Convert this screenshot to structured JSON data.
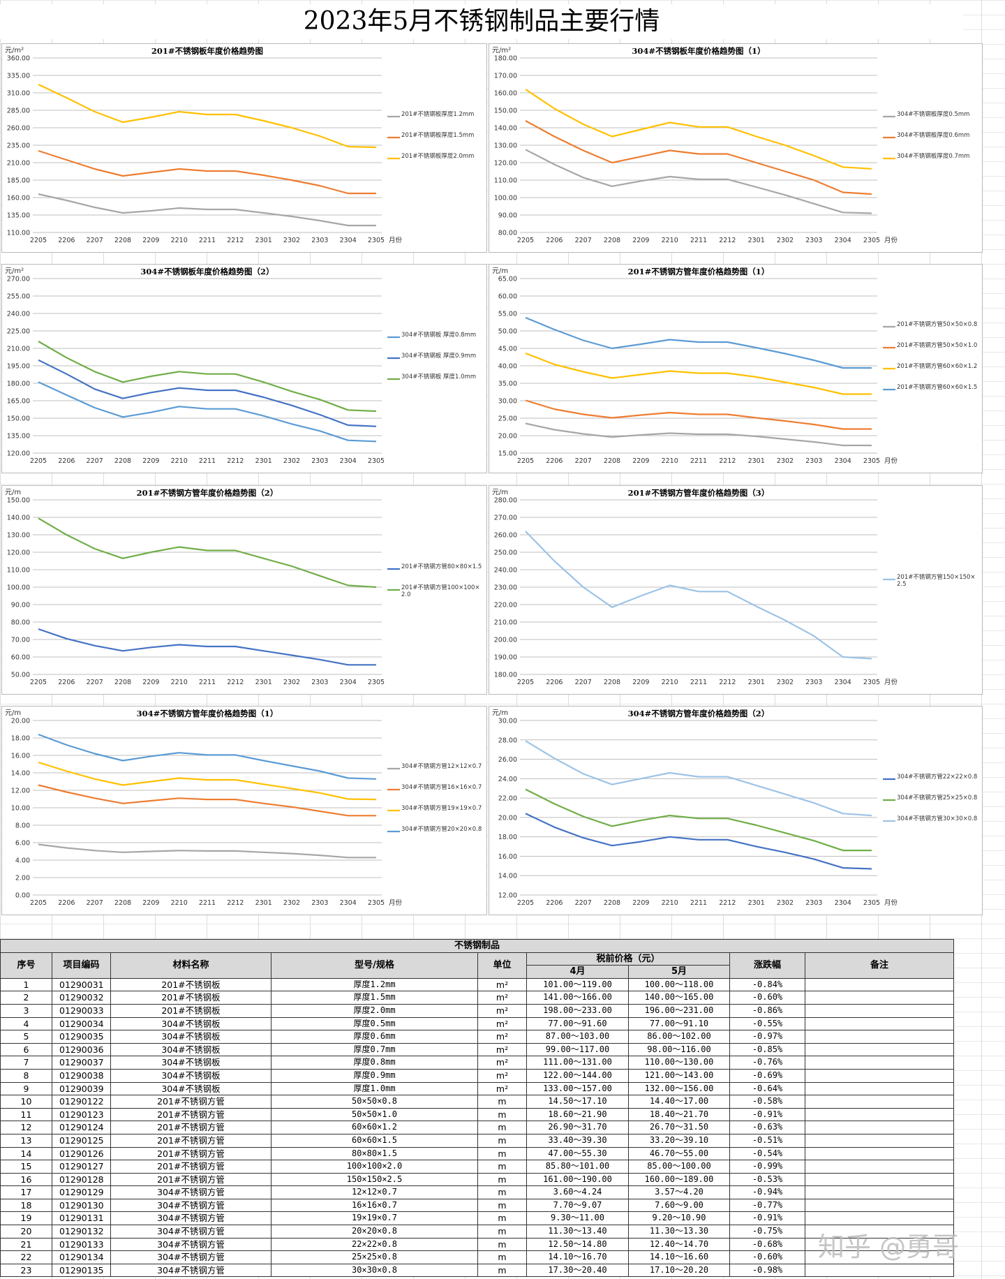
{
  "title": "2023年5月不锈钢制品主要行情",
  "watermark": "知乎 @勇哥",
  "months": [
    "2205",
    "2206",
    "2207",
    "2208",
    "2209",
    "2210",
    "2211",
    "2212",
    "2301",
    "2302",
    "2303",
    "2304",
    "2305"
  ],
  "chart_data": [
    {
      "type": "line",
      "title": "201#不锈钢板年度价格趋势图",
      "unit": "元/m²",
      "xlabel": "月份",
      "ylim": [
        110,
        360
      ],
      "ystep": 25,
      "ydec": 2,
      "legend": "right",
      "series": [
        {
          "name": "201#不锈钢板厚度1.2mm",
          "color": "#a6a6a6",
          "values": [
            165,
            156,
            146,
            138,
            141,
            145,
            143,
            143,
            138,
            133,
            127,
            120,
            120
          ]
        },
        {
          "name": "201#不锈钢板厚度1.5mm",
          "color": "#ed7d31",
          "values": [
            227,
            214,
            201,
            191,
            196,
            201,
            198,
            198,
            192,
            185,
            177,
            166,
            166
          ]
        },
        {
          "name": "201#不锈钢板厚度2.0mm",
          "color": "#ffc000",
          "values": [
            322,
            303,
            283,
            268,
            275,
            283,
            279,
            279,
            270,
            260,
            248,
            233,
            232
          ]
        }
      ]
    },
    {
      "type": "line",
      "title": "304#不锈钢板年度价格趋势图（1）",
      "unit": "元/m²",
      "xlabel": "月份",
      "ylim": [
        80,
        180
      ],
      "ystep": 10,
      "ydec": 2,
      "legend": "right",
      "series": [
        {
          "name": "304#不锈钢板厚度0.5mm",
          "color": "#a6a6a6",
          "values": [
            127.5,
            119,
            111.5,
            106.5,
            109.5,
            112,
            110.5,
            110.5,
            106,
            101.5,
            96.5,
            91.5,
            91
          ]
        },
        {
          "name": "304#不锈钢板厚度0.6mm",
          "color": "#ed7d31",
          "values": [
            144,
            135,
            127,
            120,
            123.5,
            127,
            125,
            125,
            120,
            115,
            110,
            103,
            102
          ]
        },
        {
          "name": "304#不锈钢板厚度0.7mm",
          "color": "#ffc000",
          "values": [
            162,
            151,
            142,
            135,
            139,
            143,
            140.5,
            140.5,
            135,
            130,
            124,
            117.5,
            116.5
          ]
        }
      ]
    },
    {
      "type": "line",
      "title": "304#不锈钢板年度价格趋势图（2）",
      "unit": "元/m²",
      "xlabel": "",
      "ylim": [
        120,
        270
      ],
      "ystep": 15,
      "ydec": 2,
      "legend": "right",
      "series": [
        {
          "name": "304#不锈钢板 厚度0.8mm",
          "color": "#5b9bd5",
          "values": [
            181,
            170,
            159,
            151,
            155,
            160,
            158,
            158,
            152,
            145,
            139,
            131,
            130
          ]
        },
        {
          "name": "304#不锈钢板 厚度0.9mm",
          "color": "#4472c4",
          "values": [
            200,
            188,
            175,
            167,
            172,
            176,
            174,
            174,
            168,
            161,
            153,
            144,
            143
          ]
        },
        {
          "name": "304#不锈钢板 厚度1.0mm",
          "color": "#70ad47",
          "values": [
            216,
            202,
            190,
            181,
            186,
            190,
            188,
            188,
            181,
            173,
            166,
            157,
            156
          ]
        }
      ]
    },
    {
      "type": "line",
      "title": "201#不锈钢方管年度价格趋势图（1）",
      "unit": "元/m",
      "xlabel": "月份",
      "ylim": [
        15,
        65
      ],
      "ystep": 5,
      "ydec": 2,
      "legend": "right",
      "series": [
        {
          "name": "201#不锈钢方管50×50×0.8",
          "color": "#a6a6a6",
          "values": [
            23.5,
            21.7,
            20.5,
            19.6,
            20.2,
            20.7,
            20.4,
            20.4,
            19.8,
            19,
            18.2,
            17.2,
            17.2
          ]
        },
        {
          "name": "201#不锈钢方管50×50×1.0",
          "color": "#ed7d31",
          "values": [
            30.1,
            27.6,
            26.1,
            25.1,
            25.9,
            26.6,
            26.1,
            26.1,
            25.1,
            24.2,
            23.2,
            21.9,
            21.9
          ]
        },
        {
          "name": "201#不锈钢方管60×60×1.2",
          "color": "#ffc000",
          "values": [
            43.6,
            40.4,
            38.3,
            36.5,
            37.5,
            38.5,
            37.9,
            37.9,
            36.8,
            35.3,
            33.8,
            31.9,
            31.9
          ]
        },
        {
          "name": "201#不锈钢方管60×60×1.5",
          "color": "#5b9bd5",
          "values": [
            53.8,
            50.4,
            47.3,
            45,
            46.2,
            47.5,
            46.8,
            46.8,
            45.2,
            43.5,
            41.6,
            39.4,
            39.4
          ]
        }
      ]
    },
    {
      "type": "line",
      "title": "201#不锈钢方管年度价格趋势图（2）",
      "unit": "元/m",
      "xlabel": "",
      "ylim": [
        50,
        150
      ],
      "ystep": 10,
      "ydec": 2,
      "legend": "right",
      "series": [
        {
          "name": "201#不锈钢方管80×80×1.5",
          "color": "#4472c4",
          "values": [
            76,
            70.5,
            66.5,
            63.5,
            65.5,
            67,
            66,
            66,
            63.5,
            61,
            58.5,
            55.5,
            55.5
          ]
        },
        {
          "name": "201#不锈钢方管100×100×2.0",
          "color": "#70ad47",
          "values": [
            139.5,
            130,
            122,
            116.5,
            120,
            123,
            121,
            121,
            116.5,
            112,
            106.5,
            101,
            100
          ]
        }
      ]
    },
    {
      "type": "line",
      "title": "201#不锈钢方管年度价格趋势图（3）",
      "unit": "元/m",
      "xlabel": "月份",
      "ylim": [
        180,
        280
      ],
      "ystep": 10,
      "ydec": 2,
      "legend": "right",
      "series": [
        {
          "name": "201#不锈钢方管150×150×2.5",
          "color": "#9dc3e6",
          "values": [
            262,
            245,
            230,
            218.5,
            225,
            231,
            227.5,
            227.5,
            219,
            211,
            202,
            190,
            189
          ]
        }
      ]
    },
    {
      "type": "line",
      "title": "304#不锈钢方管年度价格趋势图（1）",
      "unit": "元/m",
      "xlabel": "月份",
      "ylim": [
        0,
        20
      ],
      "ystep": 2,
      "ydec": 2,
      "legend": "right",
      "series": [
        {
          "name": "304#不锈钢方管12×12×0.7",
          "color": "#a6a6a6",
          "values": [
            5.8,
            5.4,
            5.1,
            4.9,
            5,
            5.1,
            5.05,
            5.05,
            4.9,
            4.75,
            4.55,
            4.3,
            4.3
          ]
        },
        {
          "name": "304#不锈钢方管16×16×0.7",
          "color": "#ed7d31",
          "values": [
            12.6,
            11.8,
            11.1,
            10.5,
            10.8,
            11.1,
            10.95,
            10.95,
            10.5,
            10.1,
            9.6,
            9.1,
            9.1
          ]
        },
        {
          "name": "304#不锈钢方管19×19×0.7",
          "color": "#ffc000",
          "values": [
            15.2,
            14.2,
            13.3,
            12.6,
            13,
            13.4,
            13.2,
            13.2,
            12.7,
            12.2,
            11.7,
            11,
            10.95
          ]
        },
        {
          "name": "304#不锈钢方管20×20×0.8",
          "color": "#5b9bd5",
          "values": [
            18.4,
            17.2,
            16.2,
            15.4,
            15.9,
            16.3,
            16.05,
            16.05,
            15.4,
            14.8,
            14.2,
            13.4,
            13.3
          ]
        }
      ]
    },
    {
      "type": "line",
      "title": "304#不锈钢方管年度价格趋势图（2）",
      "unit": "元/m",
      "xlabel": "月份",
      "ylim": [
        12,
        30
      ],
      "ystep": 2,
      "ydec": 2,
      "legend": "right",
      "series": [
        {
          "name": "304#不锈钢方管22×22×0.8",
          "color": "#4472c4",
          "values": [
            20.4,
            19,
            17.9,
            17.1,
            17.5,
            18,
            17.7,
            17.7,
            17,
            16.4,
            15.7,
            14.8,
            14.7
          ]
        },
        {
          "name": "304#不锈钢方管25×25×0.8",
          "color": "#70ad47",
          "values": [
            22.9,
            21.4,
            20.1,
            19.1,
            19.7,
            20.2,
            19.9,
            19.9,
            19.2,
            18.4,
            17.6,
            16.6,
            16.6
          ]
        },
        {
          "name": "304#不锈钢方管30×30×0.8",
          "color": "#9dc3e6",
          "values": [
            27.9,
            26.1,
            24.5,
            23.4,
            24,
            24.6,
            24.2,
            24.2,
            23.3,
            22.4,
            21.5,
            20.4,
            20.2
          ]
        }
      ]
    }
  ],
  "table": {
    "title": "不锈钢制品",
    "headers": {
      "no": "序号",
      "code": "项目编码",
      "name": "材料名称",
      "spec": "型号/规格",
      "unit": "单位",
      "price": "税前价格（元）",
      "apr": "4月",
      "may": "5月",
      "change": "涨跌幅",
      "note": "备注"
    },
    "rows": [
      {
        "no": "1",
        "code": "01290031",
        "name": "201#不锈钢板",
        "spec": "厚度1.2mm",
        "unit": "m²",
        "apr": "101.00～119.00",
        "may": "100.00～118.00",
        "change": "-0.84%"
      },
      {
        "no": "2",
        "code": "01290032",
        "name": "201#不锈钢板",
        "spec": "厚度1.5mm",
        "unit": "m²",
        "apr": "141.00～166.00",
        "may": "140.00～165.00",
        "change": "-0.60%"
      },
      {
        "no": "3",
        "code": "01290033",
        "name": "201#不锈钢板",
        "spec": "厚度2.0mm",
        "unit": "m²",
        "apr": "198.00～233.00",
        "may": "196.00～231.00",
        "change": "-0.86%"
      },
      {
        "no": "4",
        "code": "01290034",
        "name": "304#不锈钢板",
        "spec": "厚度0.5mm",
        "unit": "m²",
        "apr": "77.00～91.60",
        "may": "77.00～91.10",
        "change": "-0.55%"
      },
      {
        "no": "5",
        "code": "01290035",
        "name": "304#不锈钢板",
        "spec": "厚度0.6mm",
        "unit": "m²",
        "apr": "87.00～103.00",
        "may": "86.00～102.00",
        "change": "-0.97%"
      },
      {
        "no": "6",
        "code": "01290036",
        "name": "304#不锈钢板",
        "spec": "厚度0.7mm",
        "unit": "m²",
        "apr": "99.00～117.00",
        "may": "98.00～116.00",
        "change": "-0.85%"
      },
      {
        "no": "7",
        "code": "01290037",
        "name": "304#不锈钢板",
        "spec": "厚度0.8mm",
        "unit": "m²",
        "apr": "111.00～131.00",
        "may": "110.00～130.00",
        "change": "-0.76%"
      },
      {
        "no": "8",
        "code": "01290038",
        "name": "304#不锈钢板",
        "spec": "厚度0.9mm",
        "unit": "m²",
        "apr": "122.00～144.00",
        "may": "121.00～143.00",
        "change": "-0.69%"
      },
      {
        "no": "9",
        "code": "01290039",
        "name": "304#不锈钢板",
        "spec": "厚度1.0mm",
        "unit": "m²",
        "apr": "133.00～157.00",
        "may": "132.00～156.00",
        "change": "-0.64%"
      },
      {
        "no": "10",
        "code": "01290122",
        "name": "201#不锈钢方管",
        "spec": "50×50×0.8",
        "unit": "m",
        "apr": "14.50～17.10",
        "may": "14.40～17.00",
        "change": "-0.58%"
      },
      {
        "no": "11",
        "code": "01290123",
        "name": "201#不锈钢方管",
        "spec": "50×50×1.0",
        "unit": "m",
        "apr": "18.60～21.90",
        "may": "18.40～21.70",
        "change": "-0.91%"
      },
      {
        "no": "12",
        "code": "01290124",
        "name": "201#不锈钢方管",
        "spec": "60×60×1.2",
        "unit": "m",
        "apr": "26.90～31.70",
        "may": "26.70～31.50",
        "change": "-0.63%"
      },
      {
        "no": "13",
        "code": "01290125",
        "name": "201#不锈钢方管",
        "spec": "60×60×1.5",
        "unit": "m",
        "apr": "33.40～39.30",
        "may": "33.20～39.10",
        "change": "-0.51%"
      },
      {
        "no": "14",
        "code": "01290126",
        "name": "201#不锈钢方管",
        "spec": "80×80×1.5",
        "unit": "m",
        "apr": "47.00～55.30",
        "may": "46.70～55.00",
        "change": "-0.54%"
      },
      {
        "no": "15",
        "code": "01290127",
        "name": "201#不锈钢方管",
        "spec": "100×100×2.0",
        "unit": "m",
        "apr": "85.80～101.00",
        "may": "85.00～100.00",
        "change": "-0.99%"
      },
      {
        "no": "16",
        "code": "01290128",
        "name": "201#不锈钢方管",
        "spec": "150×150×2.5",
        "unit": "m",
        "apr": "161.00～190.00",
        "may": "160.00～189.00",
        "change": "-0.53%"
      },
      {
        "no": "17",
        "code": "01290129",
        "name": "304#不锈钢方管",
        "spec": "12×12×0.7",
        "unit": "m",
        "apr": "3.60～4.24",
        "may": "3.57～4.20",
        "change": "-0.94%"
      },
      {
        "no": "18",
        "code": "01290130",
        "name": "304#不锈钢方管",
        "spec": "16×16×0.7",
        "unit": "m",
        "apr": "7.70～9.07",
        "may": "7.60～9.00",
        "change": "-0.77%"
      },
      {
        "no": "19",
        "code": "01290131",
        "name": "304#不锈钢方管",
        "spec": "19×19×0.7",
        "unit": "m",
        "apr": "9.30～11.00",
        "may": "9.20～10.90",
        "change": "-0.91%"
      },
      {
        "no": "20",
        "code": "01290132",
        "name": "304#不锈钢方管",
        "spec": "20×20×0.8",
        "unit": "m",
        "apr": "11.30～13.40",
        "may": "11.30～13.30",
        "change": "-0.75%"
      },
      {
        "no": "21",
        "code": "01290133",
        "name": "304#不锈钢方管",
        "spec": "22×22×0.8",
        "unit": "m",
        "apr": "12.50～14.80",
        "may": "12.40～14.70",
        "change": "-0.68%"
      },
      {
        "no": "22",
        "code": "01290134",
        "name": "304#不锈钢方管",
        "spec": "25×25×0.8",
        "unit": "m",
        "apr": "14.10～16.70",
        "may": "14.10～16.60",
        "change": "-0.60%"
      },
      {
        "no": "23",
        "code": "01290135",
        "name": "304#不锈钢方管",
        "spec": "30×30×0.8",
        "unit": "m",
        "apr": "17.30～20.40",
        "may": "17.10～20.20",
        "change": "-0.98%"
      }
    ]
  }
}
